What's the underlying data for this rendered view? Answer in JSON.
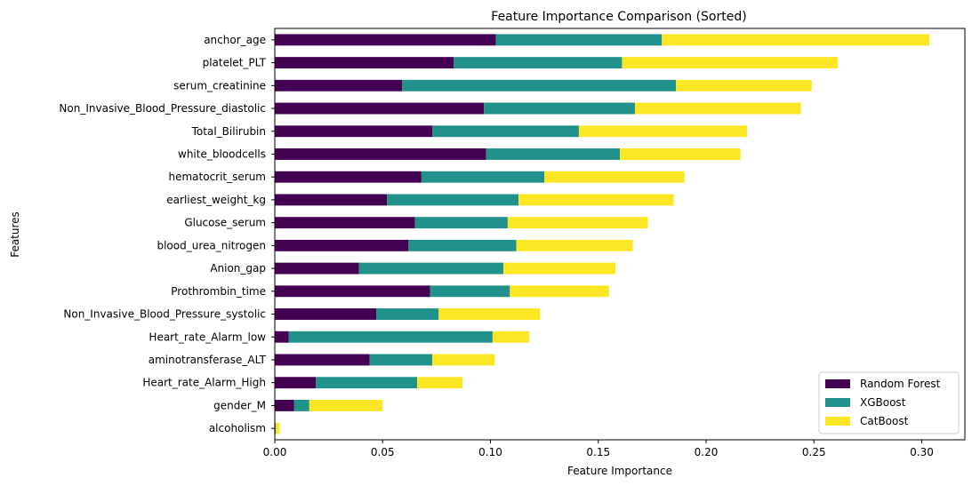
{
  "chart_data": {
    "type": "bar",
    "orientation": "horizontal",
    "stacked": true,
    "title": "Feature Importance Comparison (Sorted)",
    "xlabel": "Feature Importance",
    "ylabel": "Features",
    "xlim": [
      0,
      0.32
    ],
    "xticks": [
      "0.00",
      "0.05",
      "0.10",
      "0.15",
      "0.20",
      "0.25",
      "0.30"
    ],
    "grid": false,
    "legend_position": "lower-right",
    "categories": [
      "anchor_age",
      "platelet_PLT",
      "serum_creatinine",
      "Non_Invasive_Blood_Pressure_diastolic",
      "Total_Bilirubin",
      "white_bloodcells",
      "hematocrit_serum",
      "earliest_weight_kg",
      "Glucose_serum",
      "blood_urea_nitrogen",
      "Anion_gap",
      "Prothrombin_time",
      "Non_Invasive_Blood_Pressure_systolic",
      "Heart_rate_Alarm_low",
      "aminotransferase_ALT",
      "Heart_rate_Alarm_High",
      "gender_M",
      "alcoholism"
    ],
    "series": [
      {
        "name": "Random Forest",
        "color": "#440154",
        "values": [
          0.1025,
          0.083,
          0.059,
          0.097,
          0.073,
          0.098,
          0.068,
          0.052,
          0.065,
          0.062,
          0.039,
          0.072,
          0.047,
          0.0065,
          0.044,
          0.019,
          0.009,
          0.0003
        ]
      },
      {
        "name": "XGBoost",
        "color": "#21918c",
        "values": [
          0.077,
          0.078,
          0.127,
          0.07,
          0.068,
          0.062,
          0.057,
          0.061,
          0.043,
          0.05,
          0.067,
          0.037,
          0.029,
          0.0945,
          0.029,
          0.047,
          0.007,
          0.0002
        ]
      },
      {
        "name": "CatBoost",
        "color": "#fde725",
        "values": [
          0.124,
          0.1,
          0.063,
          0.077,
          0.078,
          0.056,
          0.065,
          0.072,
          0.065,
          0.054,
          0.052,
          0.046,
          0.047,
          0.017,
          0.029,
          0.021,
          0.034,
          0.0018
        ]
      }
    ]
  }
}
